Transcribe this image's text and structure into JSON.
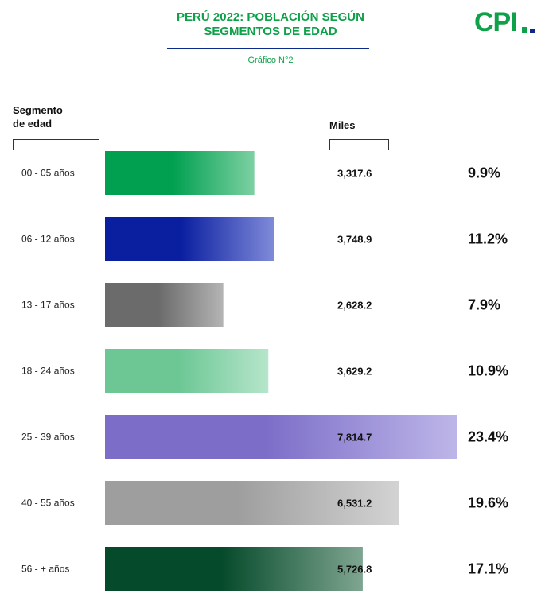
{
  "header": {
    "title_line1": "PERÚ 2022: POBLACIÓN  SEGÚN",
    "title_line2": "SEGMENTOS DE EDAD",
    "subtitle": "Gráfico N°2"
  },
  "logo": {
    "text": "CPI",
    "color": "#0fa04a",
    "bar_colors": [
      "#0fa04a",
      "#0a2a8a"
    ]
  },
  "columns": {
    "segment_header_line1": "Segmento",
    "segment_header_line2": "de edad",
    "value_header": "Miles"
  },
  "chart_data": {
    "type": "bar",
    "orientation": "horizontal",
    "title": "PERÚ 2022: POBLACIÓN  SEGÚN SEGMENTOS DE EDAD",
    "subtitle": "Gráfico N°2",
    "xlabel": "Miles",
    "ylabel": "Segmento de edad",
    "categories": [
      "00 - 05 años",
      "06 - 12 años",
      "13 - 17 años",
      "18 - 24 años",
      "25 - 39 años",
      "40 - 55 años",
      "56 - + años"
    ],
    "values": [
      3317.6,
      3748.9,
      2628.2,
      3629.2,
      7814.7,
      6531.2,
      5726.8
    ],
    "value_labels": [
      "3,317.6",
      "3,748.9",
      "2,628.2",
      "3,629.2",
      "7,814.7",
      "6,531.2",
      "5,726.8"
    ],
    "percent_labels": [
      "9.9%",
      "11.2%",
      "7.9%",
      "10.9%",
      "23.4%",
      "19.6%",
      "17.1%"
    ],
    "bar_colors": [
      [
        "#00a050",
        "#7dd0a2"
      ],
      [
        "#0a1fa0",
        "#7f8ad8"
      ],
      [
        "#6b6b6b",
        "#b4b4b4"
      ],
      [
        "#6cc795",
        "#b6e5cb"
      ],
      [
        "#7b6dc8",
        "#bdb6e8"
      ],
      [
        "#9e9e9e",
        "#d3d3d3"
      ],
      [
        "#054a2a",
        "#7fa591"
      ]
    ],
    "grid": false,
    "legend": "none"
  }
}
